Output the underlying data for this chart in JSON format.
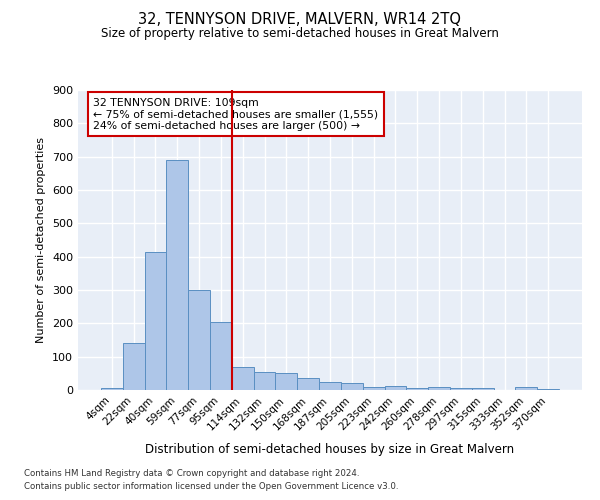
{
  "title": "32, TENNYSON DRIVE, MALVERN, WR14 2TQ",
  "subtitle": "Size of property relative to semi-detached houses in Great Malvern",
  "xlabel": "Distribution of semi-detached houses by size in Great Malvern",
  "ylabel": "Number of semi-detached properties",
  "categories": [
    "4sqm",
    "22sqm",
    "40sqm",
    "59sqm",
    "77sqm",
    "95sqm",
    "114sqm",
    "132sqm",
    "150sqm",
    "168sqm",
    "187sqm",
    "205sqm",
    "223sqm",
    "242sqm",
    "260sqm",
    "278sqm",
    "297sqm",
    "315sqm",
    "333sqm",
    "352sqm",
    "370sqm"
  ],
  "values": [
    5,
    140,
    415,
    690,
    300,
    205,
    70,
    55,
    50,
    35,
    25,
    20,
    10,
    12,
    5,
    10,
    5,
    5,
    0,
    10,
    2
  ],
  "bar_color": "#aec6e8",
  "bar_edge_color": "#5a8fc2",
  "property_line_color": "#cc0000",
  "annotation_text": "32 TENNYSON DRIVE: 109sqm\n← 75% of semi-detached houses are smaller (1,555)\n24% of semi-detached houses are larger (500) →",
  "annotation_box_color": "#ffffff",
  "annotation_box_edge": "#cc0000",
  "bg_color": "#e8eef7",
  "grid_color": "#ffffff",
  "ylim": [
    0,
    900
  ],
  "yticks": [
    0,
    100,
    200,
    300,
    400,
    500,
    600,
    700,
    800,
    900
  ],
  "footer1": "Contains HM Land Registry data © Crown copyright and database right 2024.",
  "footer2": "Contains public sector information licensed under the Open Government Licence v3.0."
}
